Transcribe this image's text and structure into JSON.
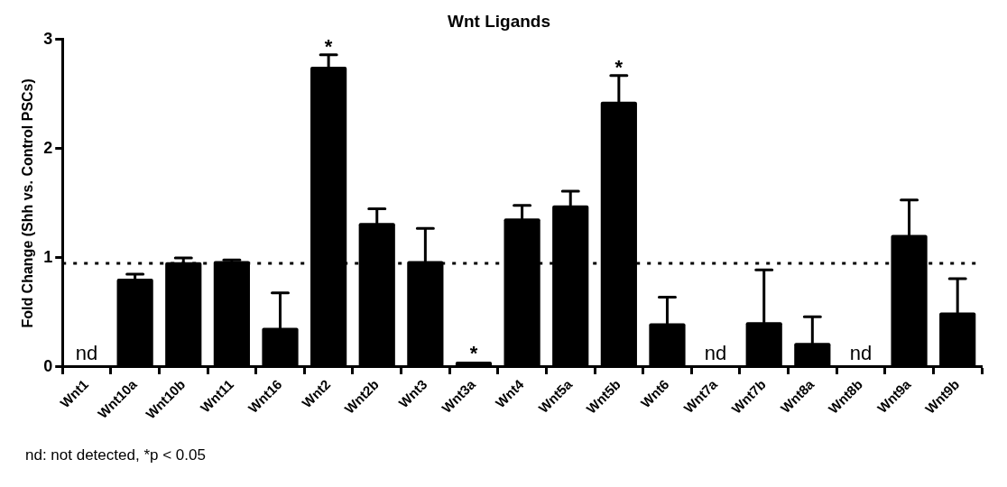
{
  "chart_data": {
    "type": "bar",
    "title": "Wnt Ligands",
    "ylabel": "Fold Change (Shh vs. Control PSCs)",
    "categories": [
      "Wnt1",
      "Wnt10a",
      "Wnt10b",
      "Wnt11",
      "Wnt16",
      "Wnt2",
      "Wnt2b",
      "Wnt3",
      "Wnt3a",
      "Wnt4",
      "Wnt5a",
      "Wnt5b",
      "Wnt6",
      "Wnt7a",
      "Wnt7b",
      "Wnt8a",
      "Wnt8b",
      "Wnt9a",
      "Wnt9b"
    ],
    "color": "#000000",
    "values": [
      null,
      0.81,
      0.96,
      0.97,
      0.36,
      2.75,
      1.32,
      0.97,
      0.05,
      1.36,
      1.48,
      2.43,
      0.4,
      null,
      0.41,
      0.22,
      null,
      1.21,
      0.5
    ],
    "errors": [
      null,
      [
        0.81,
        0.85
      ],
      [
        0.96,
        1.0
      ],
      [
        0.97,
        0.98
      ],
      [
        0.36,
        0.68
      ],
      [
        2.75,
        2.86
      ],
      [
        1.32,
        1.45
      ],
      [
        0.97,
        1.27
      ],
      null,
      [
        1.36,
        1.48
      ],
      [
        1.48,
        1.61
      ],
      [
        2.43,
        2.67
      ],
      [
        0.4,
        0.64
      ],
      null,
      [
        0.41,
        0.89
      ],
      [
        0.22,
        0.46
      ],
      null,
      [
        1.21,
        1.53
      ],
      [
        0.5,
        0.81
      ]
    ],
    "ylim": [
      0,
      3
    ],
    "yticks": [
      0,
      1,
      2,
      3
    ],
    "grid": false,
    "legend": false,
    "ref_lines": [
      {
        "axis": "y",
        "value": 0.95,
        "line_style": "dotted",
        "color": "#000000"
      }
    ],
    "annotations": [
      {
        "text": "*",
        "x": "Wnt2",
        "y": 2.86
      },
      {
        "text": "*",
        "x": "Wnt3a",
        "y": 0.05
      },
      {
        "text": "*",
        "x": "Wnt5b",
        "y": 2.67
      },
      "nd",
      "nd",
      "nd",
      "nd: not detected, *p < 0.05"
    ]
  }
}
